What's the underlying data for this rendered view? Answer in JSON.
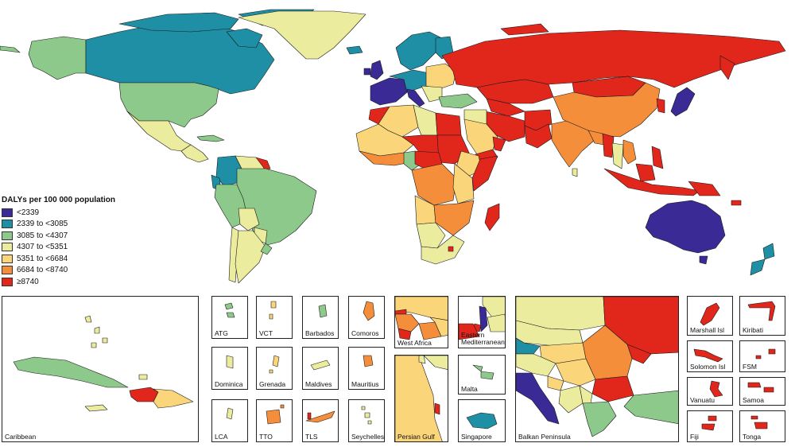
{
  "legend": {
    "title": "DALYs per 100 000 population",
    "classes": [
      {
        "label": "<2339",
        "color": "#3a2a96"
      },
      {
        "label": "2339 to <3085",
        "color": "#1f8fa6"
      },
      {
        "label": "3085 to <4307",
        "color": "#8cc98a"
      },
      {
        "label": "4307 to <5351",
        "color": "#ecec9e"
      },
      {
        "label": "5351 to <6684",
        "color": "#fad57a"
      },
      {
        "label": "6684 to <8740",
        "color": "#f58e3a"
      },
      {
        "label": "≥8740",
        "color": "#e1261c"
      }
    ]
  },
  "insets": [
    {
      "id": "caribbean",
      "label": "Caribbean"
    },
    {
      "id": "atg",
      "label": "ATG",
      "cls": 2
    },
    {
      "id": "vct",
      "label": "VCT",
      "cls": 4
    },
    {
      "id": "barbados",
      "label": "Barbados",
      "cls": 2
    },
    {
      "id": "comoros",
      "label": "Comoros",
      "cls": 5
    },
    {
      "id": "dominica",
      "label": "Dominica",
      "cls": 3
    },
    {
      "id": "grenada",
      "label": "Grenada",
      "cls": 4
    },
    {
      "id": "maldives",
      "label": "Maldives",
      "cls": 3
    },
    {
      "id": "mauritius",
      "label": "Mauritius",
      "cls": 5
    },
    {
      "id": "lca",
      "label": "LCA",
      "cls": 3
    },
    {
      "id": "tto",
      "label": "TTO",
      "cls": 5
    },
    {
      "id": "tls",
      "label": "TLS",
      "cls": 5
    },
    {
      "id": "seychelles",
      "label": "Seychelles",
      "cls": 3
    },
    {
      "id": "west-africa",
      "label": "West Africa"
    },
    {
      "id": "eastern-mediterranean",
      "label": "Eastern Mediterranean"
    },
    {
      "id": "persian-gulf",
      "label": "Persian Gulf"
    },
    {
      "id": "malta",
      "label": "Malta",
      "cls": 2
    },
    {
      "id": "singapore",
      "label": "Singapore",
      "cls": 1
    },
    {
      "id": "balkan-peninsula",
      "label": "Balkan Peninsula"
    },
    {
      "id": "marshall-isl",
      "label": "Marshall Isl",
      "cls": 6
    },
    {
      "id": "kiribati",
      "label": "Kiribati",
      "cls": 6
    },
    {
      "id": "solomon-isl",
      "label": "Solomon Isl",
      "cls": 6
    },
    {
      "id": "fsm",
      "label": "FSM",
      "cls": 6
    },
    {
      "id": "vanuatu",
      "label": "Vanuatu",
      "cls": 6
    },
    {
      "id": "samoa",
      "label": "Samoa",
      "cls": 6
    },
    {
      "id": "fiji",
      "label": "Fiji",
      "cls": 6
    },
    {
      "id": "tonga",
      "label": "Tonga",
      "cls": 6
    }
  ]
}
